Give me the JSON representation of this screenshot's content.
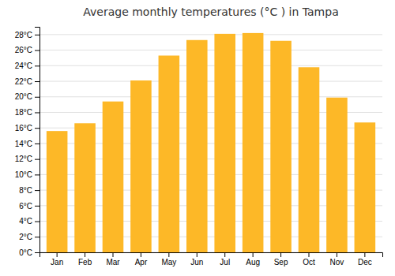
{
  "chart_data": {
    "type": "bar",
    "title": "Average monthly temperatures (°C ) in Tampa",
    "categories": [
      "Jan",
      "Feb",
      "Mar",
      "Apr",
      "May",
      "Jun",
      "Jul",
      "Aug",
      "Sep",
      "Oct",
      "Nov",
      "Dec"
    ],
    "values": [
      15.6,
      16.6,
      19.4,
      22.1,
      25.3,
      27.3,
      28.1,
      28.2,
      27.2,
      23.8,
      19.9,
      16.7
    ],
    "color": "#FDB827",
    "ylim": [
      0,
      29
    ],
    "yticks": [
      {
        "value": 0,
        "label": "0°C"
      },
      {
        "value": 2,
        "label": "2°C"
      },
      {
        "value": 4,
        "label": "4°C"
      },
      {
        "value": 6,
        "label": "6°C"
      },
      {
        "value": 8,
        "label": "8°C"
      },
      {
        "value": 10,
        "label": "10°C"
      },
      {
        "value": 12,
        "label": "12°C"
      },
      {
        "value": 14,
        "label": "14°C"
      },
      {
        "value": 16,
        "label": "16°C"
      },
      {
        "value": 18,
        "label": "18°C"
      },
      {
        "value": 20,
        "label": "20°C"
      },
      {
        "value": 22,
        "label": "22°C"
      },
      {
        "value": 24,
        "label": "24°C"
      },
      {
        "value": 26,
        "label": "26°C"
      },
      {
        "value": 28,
        "label": "28°C"
      }
    ],
    "grid": true
  }
}
